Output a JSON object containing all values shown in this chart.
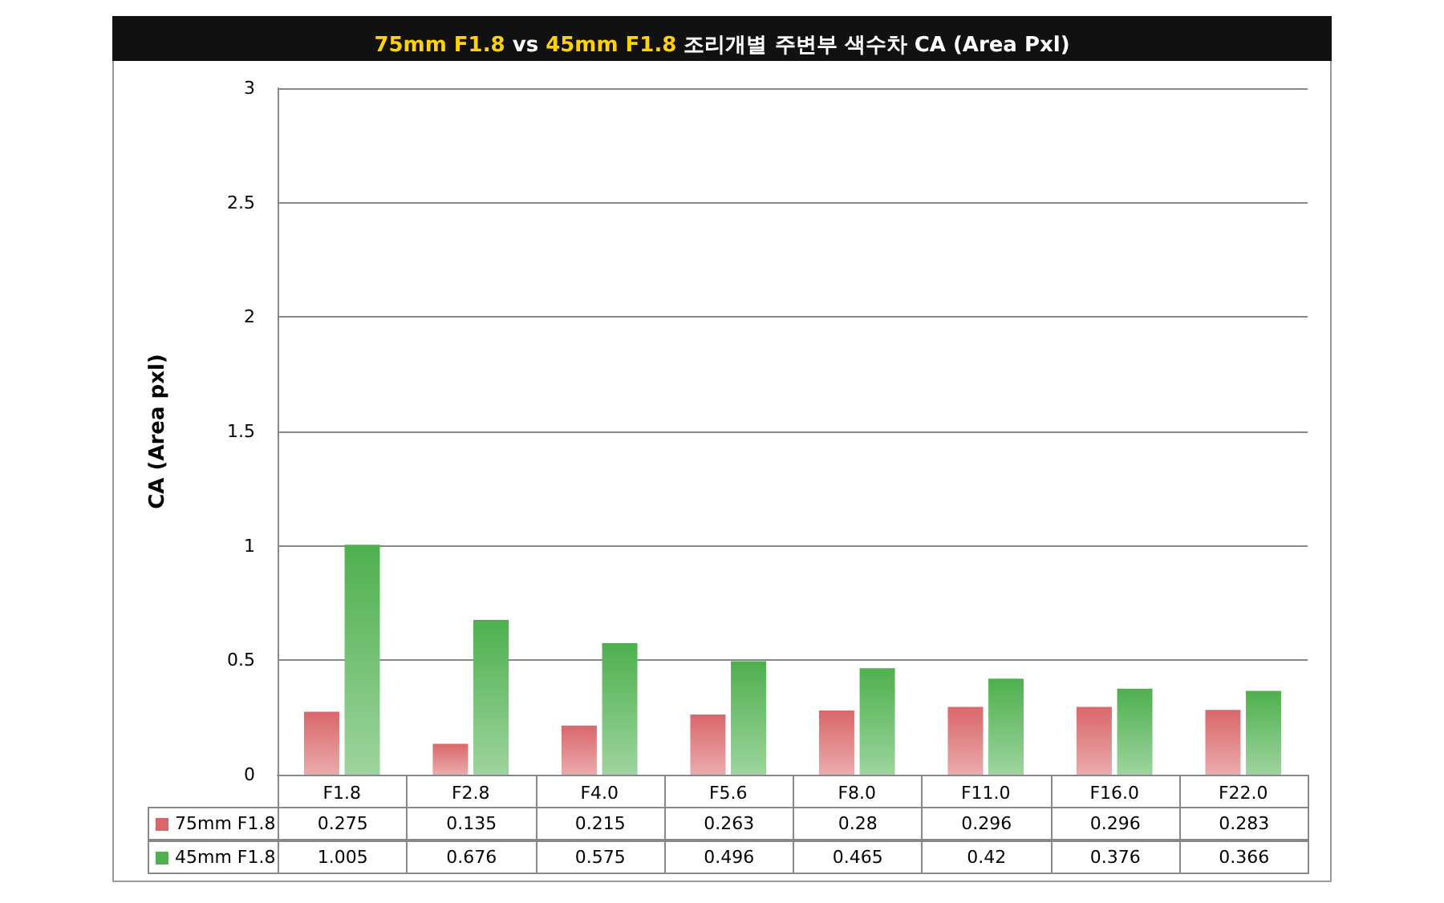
{
  "chart_data": {
    "type": "bar",
    "title": "75mm F1.8 vs 45mm F1.8 조리개별 주변부 색수차 CA (Area Pxl)",
    "ylabel": "CA (Area pxl)",
    "categories": [
      "F1.8",
      "F2.8",
      "F4.0",
      "F5.6",
      "F8.0",
      "F11.0",
      "F16.0",
      "F22.0"
    ],
    "series": [
      {
        "name": "75mm F1.8",
        "color": "#d9676a",
        "values": [
          0.275,
          0.135,
          0.215,
          0.263,
          0.28,
          0.296,
          0.296,
          0.283
        ]
      },
      {
        "name": "45mm F1.8",
        "color": "#4eb04e",
        "values": [
          1.005,
          0.676,
          0.575,
          0.496,
          0.465,
          0.42,
          0.376,
          0.366
        ]
      }
    ],
    "ylim": [
      0,
      3
    ],
    "yticks": [
      0,
      0.5,
      1,
      1.5,
      2,
      2.5,
      3
    ],
    "grid": "y",
    "legend": "bottom",
    "data_labels": true
  }
}
